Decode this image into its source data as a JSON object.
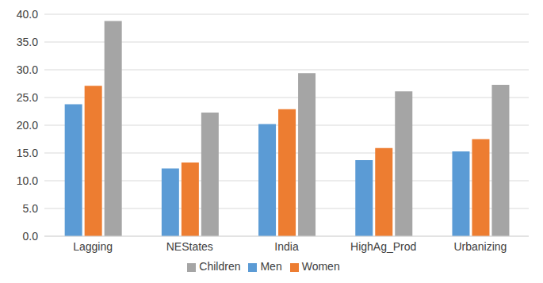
{
  "chart_data": {
    "type": "bar",
    "categories": [
      "Lagging",
      "NEStates",
      "India",
      "HighAg_Prod",
      "Urbanizing"
    ],
    "series": [
      {
        "name": "Men",
        "color": "#5b9bd5",
        "values": [
          23.8,
          12.2,
          20.2,
          13.7,
          15.3
        ]
      },
      {
        "name": "Women",
        "color": "#ed7d31",
        "values": [
          27.1,
          13.3,
          22.9,
          15.9,
          17.5
        ]
      },
      {
        "name": "Children",
        "color": "#a5a5a5",
        "values": [
          38.8,
          22.3,
          29.4,
          26.1,
          27.3
        ]
      }
    ],
    "ylim": [
      0,
      40
    ],
    "yticks": [
      {
        "value": 0,
        "label": "0.0"
      },
      {
        "value": 5,
        "label": "5.0"
      },
      {
        "value": 10,
        "label": "10.0"
      },
      {
        "value": 15,
        "label": "15.0"
      },
      {
        "value": 20,
        "label": "20.0"
      },
      {
        "value": 25,
        "label": "25.0"
      },
      {
        "value": 30,
        "label": "30.0"
      },
      {
        "value": 35,
        "label": "35.0"
      },
      {
        "value": 40,
        "label": "40.0"
      }
    ],
    "grid": true,
    "legend": "bottom"
  }
}
